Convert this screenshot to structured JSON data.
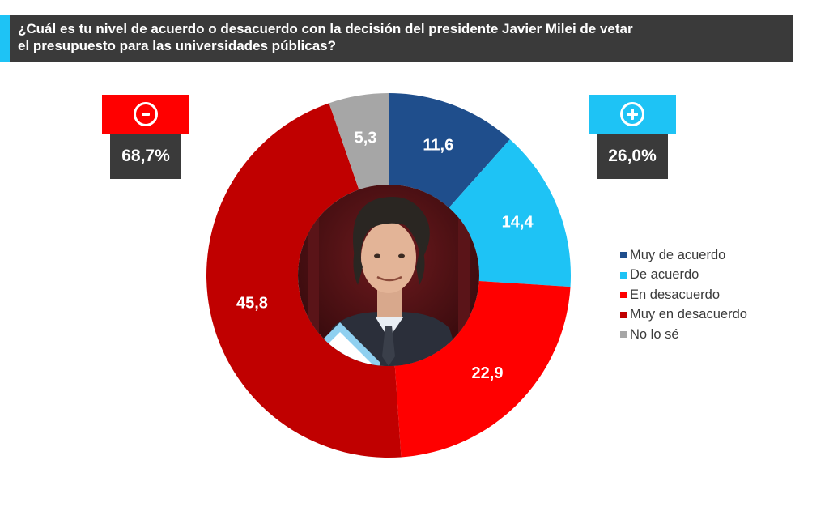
{
  "title": {
    "line1": "¿Cuál es tu nivel de acuerdo o desacuerdo con la decisión del presidente Javier Milei de vetar",
    "line2": "el presupuesto para las universidades públicas?"
  },
  "totals": {
    "negative": "68,7%",
    "positive": "26,0%"
  },
  "colors": {
    "title_bg": "#3a3a3a",
    "accent": "#1ec3f5",
    "negative_badge": "#ff0000"
  },
  "chart_data": {
    "type": "pie",
    "donut": true,
    "start": "top",
    "direction": "clockwise",
    "center_image": "portrait-photo",
    "legend_position": "right",
    "categories": [
      "Muy de acuerdo",
      "De acuerdo",
      "En desacuerdo",
      "Muy en desacuerdo",
      "No lo sé"
    ],
    "values": [
      11.6,
      14.4,
      22.9,
      45.8,
      5.3
    ],
    "labels": [
      "11,6",
      "14,4",
      "22,9",
      "45,8",
      "5,3"
    ],
    "colors": [
      "#1f4e8c",
      "#1ec3f5",
      "#ff0000",
      "#c00000",
      "#a6a6a6"
    ]
  }
}
